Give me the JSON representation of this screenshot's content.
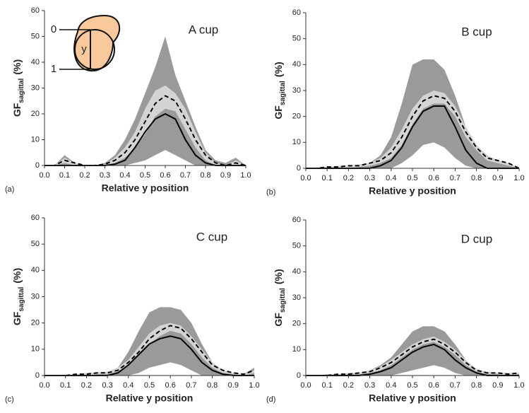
{
  "chart_data": [
    {
      "type": "line",
      "title": "A cup",
      "panel_label": "(a)",
      "xlabel": "Relative y position",
      "ylabel": {
        "main": "GF",
        "sub": "sagittal",
        "unit": "(%)"
      },
      "inset_labels": [
        "0",
        "y",
        "1"
      ],
      "x": [
        0,
        0.05,
        0.1,
        0.15,
        0.2,
        0.25,
        0.3,
        0.35,
        0.4,
        0.45,
        0.5,
        0.55,
        0.6,
        0.65,
        0.7,
        0.75,
        0.8,
        0.85,
        0.9,
        0.95,
        1
      ],
      "bands": [
        {
          "color": "#9a9a9a",
          "low": [
            0,
            0,
            0,
            0,
            0,
            0,
            0,
            0,
            0,
            1,
            2,
            4,
            6,
            4,
            2,
            0,
            0,
            0,
            0,
            0,
            0
          ],
          "high": [
            0,
            0,
            4,
            1,
            0,
            0,
            1,
            4,
            10,
            18,
            28,
            38,
            50,
            35,
            25,
            15,
            6,
            2,
            1,
            3,
            0
          ]
        },
        {
          "color": "#d4d4d4",
          "low": [
            0,
            0,
            1,
            0,
            0,
            0,
            0,
            1,
            3,
            7,
            12,
            19,
            22,
            21,
            14,
            7,
            2,
            0,
            0,
            0,
            0
          ],
          "high": [
            0,
            0,
            3,
            1,
            0,
            0,
            0.5,
            3,
            7,
            13,
            22,
            29,
            31,
            28,
            22,
            13,
            5,
            1,
            0,
            2,
            0
          ]
        }
      ],
      "series": [
        {
          "color": "#000000",
          "dash": true,
          "values": [
            0,
            0,
            2,
            1,
            0,
            0,
            0.5,
            2,
            5,
            10,
            17,
            24,
            27,
            25,
            18,
            10,
            4,
            1,
            0,
            1,
            0
          ]
        },
        {
          "color": "#000000",
          "dash": false,
          "values": [
            0,
            0,
            0,
            0,
            0,
            0,
            0,
            0.5,
            2,
            7,
            13,
            18,
            20,
            18,
            10,
            4,
            1,
            0,
            0,
            0,
            0
          ]
        }
      ],
      "xlim": [
        0,
        1
      ],
      "ylim": [
        0,
        60
      ],
      "xticks": [
        {
          "value": 0,
          "label": "0.0"
        },
        0.1,
        0.2,
        0.3,
        0.4,
        0.5,
        0.6,
        0.7,
        0.8,
        0.9,
        {
          "value": 1,
          "label": "1.0"
        }
      ],
      "yticks": [
        0,
        10,
        20,
        30,
        40,
        50,
        60
      ]
    },
    {
      "type": "line",
      "title": "B cup",
      "panel_label": "(b)",
      "xlabel": "Relative y position",
      "ylabel": {
        "main": "GF",
        "sub": "sagittal",
        "unit": "(%)"
      },
      "x": [
        0,
        0.05,
        0.1,
        0.15,
        0.2,
        0.25,
        0.3,
        0.35,
        0.4,
        0.45,
        0.5,
        0.55,
        0.6,
        0.65,
        0.7,
        0.75,
        0.8,
        0.85,
        0.9,
        0.95,
        1
      ],
      "bands": [
        {
          "color": "#9a9a9a",
          "low": [
            0,
            0,
            0,
            0,
            0,
            0,
            0,
            0,
            0,
            2,
            5,
            9,
            10,
            8,
            4,
            1,
            0,
            0,
            0,
            0,
            0
          ],
          "high": [
            0,
            0,
            0,
            0.5,
            1,
            1.5,
            2,
            5,
            12,
            25,
            40,
            42,
            42,
            38,
            28,
            16,
            9,
            5,
            3,
            2,
            0
          ]
        },
        {
          "color": "#d4d4d4",
          "low": [
            0,
            0,
            0,
            0,
            0,
            0.5,
            1,
            2,
            4,
            9,
            17,
            23,
            25,
            25,
            20,
            12,
            7,
            3,
            2,
            1,
            0
          ],
          "high": [
            0,
            0,
            0.5,
            1,
            1,
            1.5,
            2,
            4,
            8,
            15,
            23,
            28,
            30,
            29,
            24,
            16,
            9,
            5,
            3,
            2,
            0
          ]
        }
      ],
      "series": [
        {
          "color": "#000000",
          "dash": true,
          "values": [
            0,
            0,
            0.5,
            0.5,
            1,
            1,
            2,
            3,
            6,
            12,
            20,
            26,
            28,
            27,
            22,
            14,
            8,
            4,
            3,
            2,
            0
          ]
        },
        {
          "color": "#000000",
          "dash": false,
          "values": [
            0,
            0,
            0,
            0,
            0,
            0,
            0,
            1,
            3,
            8,
            16,
            22,
            24,
            24,
            16,
            7,
            2,
            0,
            0,
            0,
            0
          ]
        }
      ],
      "xlim": [
        0,
        1
      ],
      "ylim": [
        0,
        60
      ],
      "xticks": [
        {
          "value": 0,
          "label": "0.0"
        },
        0.1,
        0.2,
        0.3,
        0.4,
        0.5,
        0.6,
        0.7,
        0.8,
        0.9,
        {
          "value": 1,
          "label": "1.0"
        }
      ],
      "yticks": [
        0,
        10,
        20,
        30,
        40,
        50,
        60
      ]
    },
    {
      "type": "line",
      "title": "C cup",
      "panel_label": "(c)",
      "xlabel": "Relative y position",
      "ylabel": {
        "main": "GF",
        "sub": "sagittal",
        "unit": "(%)"
      },
      "x": [
        0,
        0.05,
        0.1,
        0.15,
        0.2,
        0.25,
        0.3,
        0.35,
        0.4,
        0.45,
        0.5,
        0.55,
        0.6,
        0.65,
        0.7,
        0.75,
        0.8,
        0.85,
        0.9,
        0.95,
        1
      ],
      "bands": [
        {
          "color": "#9a9a9a",
          "low": [
            0,
            0,
            0,
            0,
            0,
            0,
            0,
            0,
            0,
            1,
            3,
            4,
            5,
            4,
            2,
            0,
            0,
            0,
            0,
            0,
            0
          ],
          "high": [
            0,
            0,
            0,
            0.5,
            1,
            1,
            1.5,
            3,
            9,
            17,
            24,
            26,
            26,
            25,
            20,
            12,
            5,
            2,
            1,
            0.5,
            3
          ]
        },
        {
          "color": "#d4d4d4",
          "low": [
            0,
            0,
            0,
            0,
            0,
            0.5,
            0.5,
            1.5,
            4,
            8,
            12,
            15,
            17,
            16,
            12,
            7,
            3,
            1,
            0.5,
            0,
            1
          ],
          "high": [
            0,
            0,
            0,
            0.5,
            1,
            1,
            1.5,
            3,
            6,
            11,
            16,
            19,
            20,
            19,
            15,
            10,
            5,
            2,
            1,
            0.5,
            2
          ]
        }
      ],
      "series": [
        {
          "color": "#000000",
          "dash": true,
          "values": [
            0,
            0,
            0,
            0.5,
            0.5,
            1,
            1,
            2,
            5,
            9,
            14,
            17,
            19,
            18,
            14,
            9,
            4,
            2,
            1,
            0.5,
            2
          ]
        },
        {
          "color": "#000000",
          "dash": false,
          "values": [
            0,
            0,
            0,
            0,
            0,
            0,
            0,
            1,
            4,
            8,
            12,
            14,
            15,
            14,
            10,
            5,
            2,
            0.5,
            0,
            0,
            0
          ]
        }
      ],
      "xlim": [
        0,
        1
      ],
      "ylim": [
        0,
        60
      ],
      "xticks": [
        {
          "value": 0,
          "label": "0.0"
        },
        0.1,
        0.2,
        0.3,
        0.4,
        0.5,
        0.6,
        0.7,
        0.8,
        0.9,
        {
          "value": 1,
          "label": "1.0"
        }
      ],
      "yticks": [
        0,
        10,
        20,
        30,
        40,
        50,
        60
      ]
    },
    {
      "type": "line",
      "title": "D cup",
      "panel_label": "(d)",
      "xlabel": "Relative y position",
      "ylabel": {
        "main": "GF",
        "sub": "sagittal",
        "unit": "(%)"
      },
      "x": [
        0,
        0.05,
        0.1,
        0.15,
        0.2,
        0.25,
        0.3,
        0.35,
        0.4,
        0.45,
        0.5,
        0.55,
        0.6,
        0.65,
        0.7,
        0.75,
        0.8,
        0.85,
        0.9,
        0.95,
        1
      ],
      "bands": [
        {
          "color": "#9a9a9a",
          "low": [
            0,
            0,
            0,
            0,
            0,
            0,
            0,
            0,
            0,
            1,
            2,
            3,
            4,
            3,
            1,
            0,
            0,
            0,
            0,
            0,
            0
          ],
          "high": [
            0,
            0,
            0.5,
            0.5,
            1,
            1,
            2,
            4,
            7,
            12,
            17,
            19,
            19,
            17,
            12,
            6,
            2,
            1,
            1,
            1,
            1
          ]
        },
        {
          "color": "#d4d4d4",
          "low": [
            0,
            0,
            0,
            0,
            0.5,
            0.5,
            1,
            2,
            4,
            7,
            10,
            12,
            13,
            11,
            8,
            4,
            1.5,
            0.5,
            0.5,
            0,
            0.5
          ],
          "high": [
            0,
            0,
            0.5,
            0.5,
            1,
            1,
            2,
            3.5,
            6,
            9,
            12,
            14,
            15,
            13,
            10,
            6,
            2.5,
            1.5,
            1,
            1,
            1
          ]
        }
      ],
      "series": [
        {
          "color": "#000000",
          "dash": true,
          "values": [
            0,
            0,
            0,
            0.5,
            0.5,
            1,
            1.5,
            3,
            5,
            8,
            11,
            13,
            14,
            12,
            9,
            5,
            2,
            1,
            1,
            0.5,
            1
          ]
        },
        {
          "color": "#000000",
          "dash": false,
          "values": [
            0,
            0,
            0,
            0,
            0,
            0,
            0.5,
            1.5,
            3,
            6,
            9,
            11,
            12,
            10,
            6,
            3,
            1,
            0,
            0,
            0,
            0
          ]
        }
      ],
      "xlim": [
        0,
        1
      ],
      "ylim": [
        0,
        60
      ],
      "xticks": [
        {
          "value": 0,
          "label": "0.0"
        },
        0.1,
        0.2,
        0.3,
        0.4,
        0.5,
        0.6,
        0.7,
        0.8,
        0.9,
        {
          "value": 1,
          "label": "1.0"
        }
      ],
      "yticks": [
        0,
        10,
        20,
        30,
        40,
        50,
        60
      ]
    }
  ]
}
